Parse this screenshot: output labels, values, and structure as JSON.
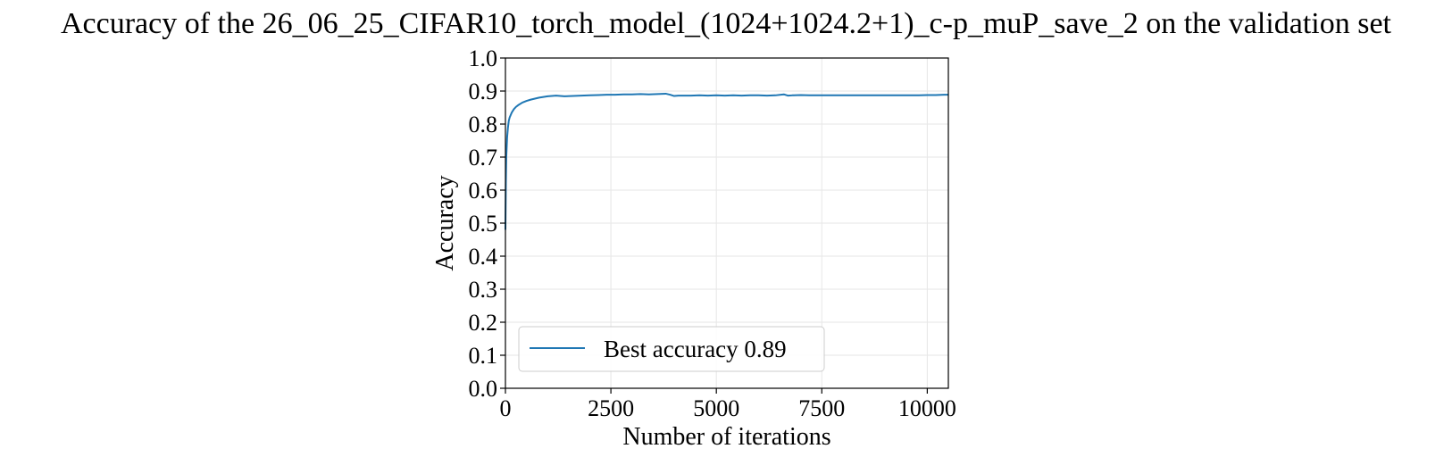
{
  "chart_data": {
    "type": "line",
    "title": "Accuracy of the 26_06_25_CIFAR10_torch_model_(1024+1024.2+1)_c-p_muP_save_2 on the validation set",
    "xlabel": "Number of iterations",
    "ylabel": "Accuracy",
    "xlim": [
      0,
      10500
    ],
    "ylim": [
      0.0,
      1.0
    ],
    "x_ticks": [
      0,
      2500,
      5000,
      7500,
      10000
    ],
    "y_ticks": [
      0.0,
      0.1,
      0.2,
      0.3,
      0.4,
      0.5,
      0.6,
      0.7,
      0.8,
      0.9,
      1.0
    ],
    "grid": true,
    "legend_position": "lower-left",
    "colors": {
      "series": "#1f77b4"
    },
    "series": [
      {
        "name": "Best accuracy 0.89",
        "x": [
          0,
          10,
          20,
          40,
          60,
          80,
          100,
          150,
          200,
          250,
          300,
          400,
          500,
          600,
          700,
          800,
          900,
          1000,
          1200,
          1400,
          1600,
          1800,
          2000,
          2200,
          2400,
          2600,
          2800,
          3000,
          3200,
          3400,
          3600,
          3800,
          3900,
          4000,
          4100,
          4200,
          4400,
          4600,
          4800,
          5000,
          5200,
          5400,
          5600,
          5800,
          6000,
          6200,
          6400,
          6600,
          6700,
          6800,
          7000,
          7200,
          7400,
          7600,
          7800,
          8000,
          8200,
          8400,
          8600,
          8800,
          9000,
          9200,
          9400,
          9600,
          9800,
          10000,
          10200,
          10400,
          10500
        ],
        "values": [
          0.48,
          0.62,
          0.7,
          0.76,
          0.79,
          0.81,
          0.82,
          0.835,
          0.845,
          0.852,
          0.857,
          0.865,
          0.87,
          0.874,
          0.877,
          0.88,
          0.882,
          0.884,
          0.886,
          0.884,
          0.885,
          0.886,
          0.887,
          0.888,
          0.889,
          0.889,
          0.89,
          0.89,
          0.891,
          0.89,
          0.891,
          0.892,
          0.889,
          0.885,
          0.886,
          0.886,
          0.886,
          0.887,
          0.886,
          0.887,
          0.886,
          0.887,
          0.886,
          0.887,
          0.887,
          0.886,
          0.887,
          0.89,
          0.886,
          0.887,
          0.888,
          0.887,
          0.887,
          0.887,
          0.887,
          0.887,
          0.887,
          0.887,
          0.887,
          0.887,
          0.887,
          0.887,
          0.887,
          0.887,
          0.887,
          0.888,
          0.888,
          0.889,
          0.889
        ]
      }
    ]
  }
}
